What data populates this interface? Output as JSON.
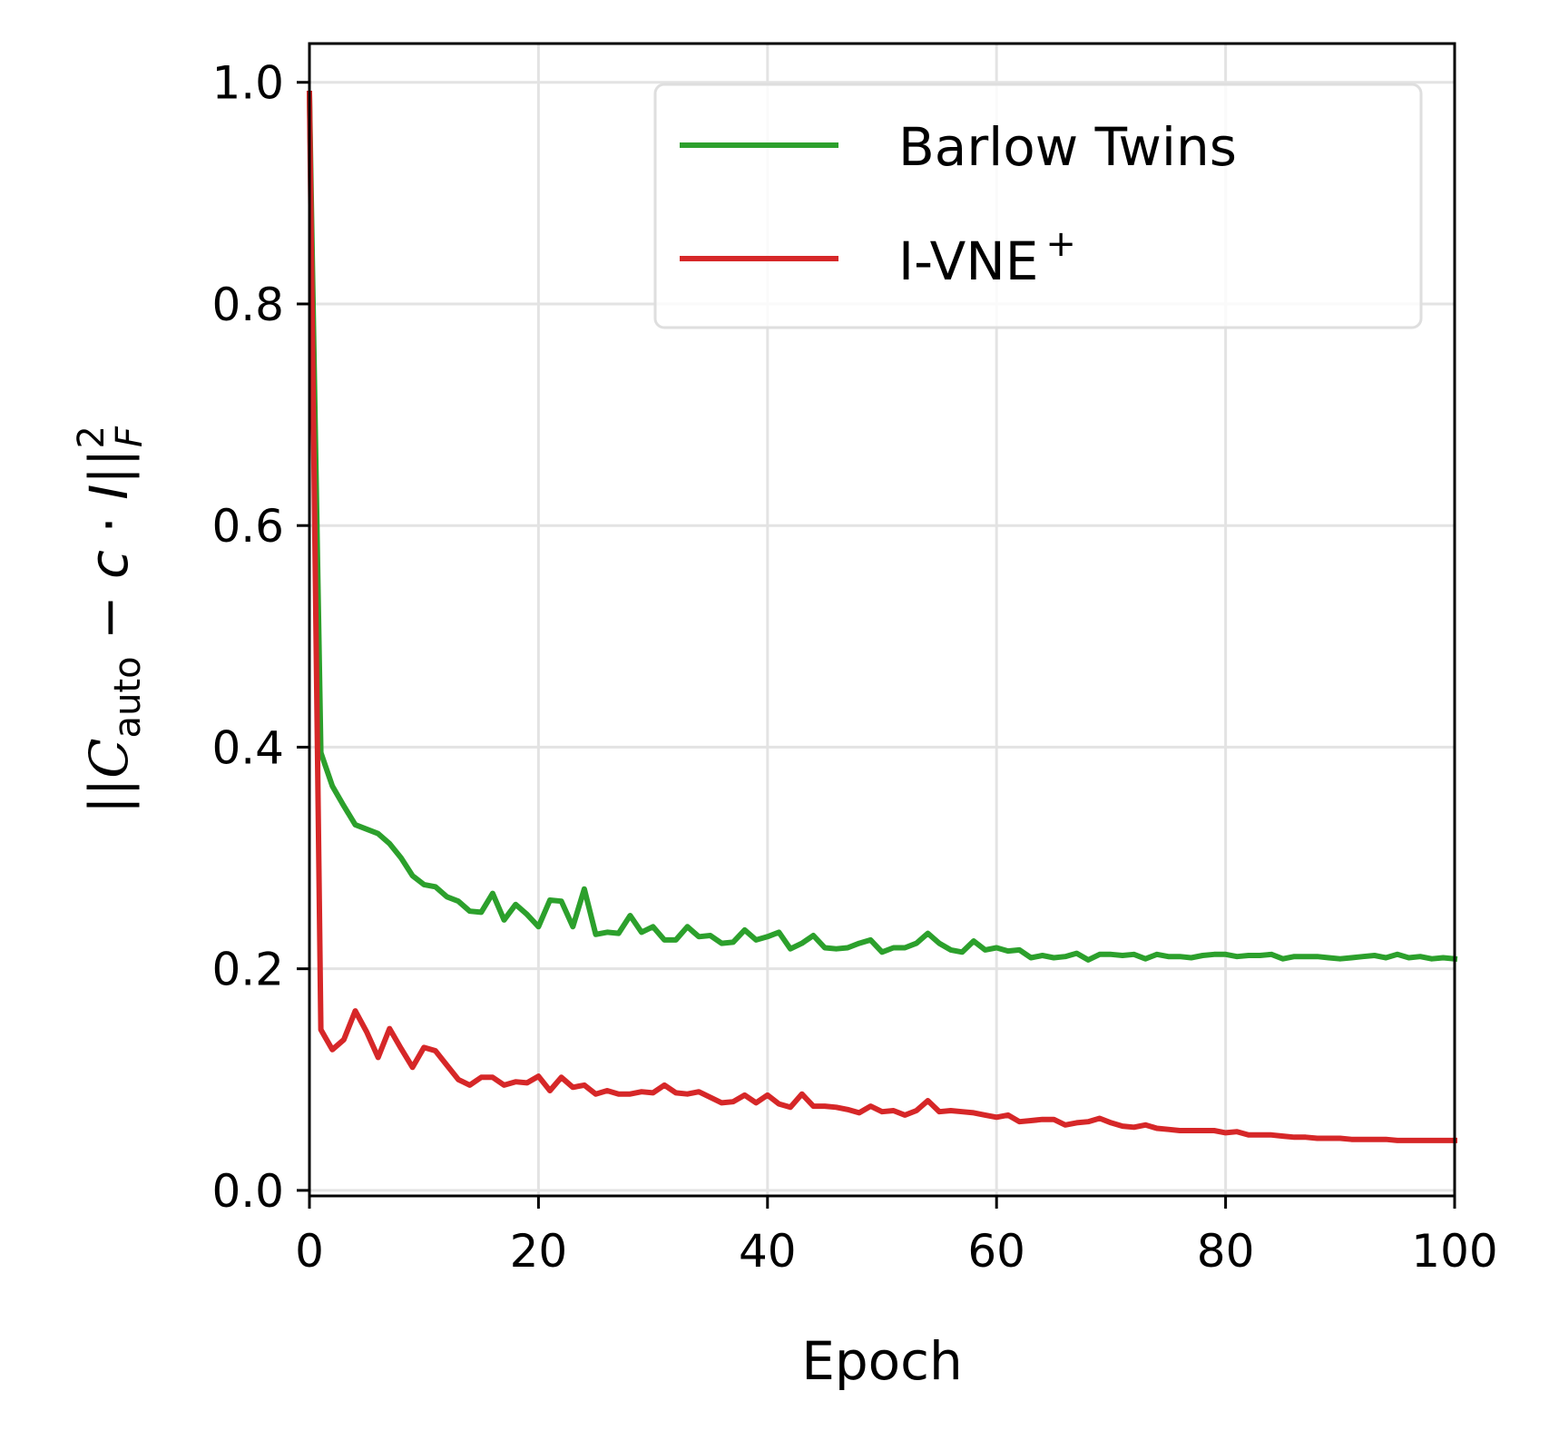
{
  "chart_data": {
    "type": "line",
    "title": "",
    "xlabel": "Epoch",
    "ylabel": {
      "pre": "||",
      "c_script": "C",
      "c_sub": "auto",
      "mid": " − ",
      "c_const": "c",
      "dot": " · ",
      "ident": "I",
      "bars": "||",
      "sub": "F",
      "sup": "2"
    },
    "xlim": [
      0,
      100
    ],
    "ylim": [
      -0.005,
      1.035
    ],
    "xticks": [
      0,
      20,
      40,
      60,
      80,
      100
    ],
    "xtick_labels": [
      "0",
      "20",
      "40",
      "60",
      "80",
      "100"
    ],
    "yticks": [
      0.0,
      0.2,
      0.4,
      0.6,
      0.8,
      1.0
    ],
    "ytick_labels": [
      "0.0",
      "0.2",
      "0.4",
      "0.6",
      "0.8",
      "1.0"
    ],
    "grid": true,
    "legend_position": "top-right",
    "x": [
      0,
      1,
      2,
      3,
      4,
      5,
      6,
      7,
      8,
      9,
      10,
      11,
      12,
      13,
      14,
      15,
      16,
      17,
      18,
      19,
      20,
      21,
      22,
      23,
      24,
      25,
      26,
      27,
      28,
      29,
      30,
      31,
      32,
      33,
      34,
      35,
      36,
      37,
      38,
      39,
      40,
      41,
      42,
      43,
      44,
      45,
      46,
      47,
      48,
      49,
      50,
      51,
      52,
      53,
      54,
      55,
      56,
      57,
      58,
      59,
      60,
      61,
      62,
      63,
      64,
      65,
      66,
      67,
      68,
      69,
      70,
      71,
      72,
      73,
      74,
      75,
      76,
      77,
      78,
      79,
      80,
      81,
      82,
      83,
      84,
      85,
      86,
      87,
      88,
      89,
      90,
      91,
      92,
      93,
      94,
      95,
      96,
      97,
      98,
      99,
      100
    ],
    "series": [
      {
        "name": "Barlow Twins",
        "color": "#2ca02c",
        "values": [
          0.99,
          0.395,
          0.365,
          0.347,
          0.33,
          0.326,
          0.322,
          0.313,
          0.3,
          0.284,
          0.276,
          0.274,
          0.265,
          0.261,
          0.252,
          0.251,
          0.268,
          0.244,
          0.258,
          0.249,
          0.238,
          0.262,
          0.261,
          0.238,
          0.272,
          0.231,
          0.233,
          0.232,
          0.248,
          0.233,
          0.238,
          0.226,
          0.226,
          0.238,
          0.229,
          0.23,
          0.223,
          0.224,
          0.235,
          0.226,
          0.229,
          0.233,
          0.218,
          0.223,
          0.23,
          0.219,
          0.218,
          0.219,
          0.223,
          0.226,
          0.215,
          0.219,
          0.219,
          0.223,
          0.232,
          0.223,
          0.217,
          0.215,
          0.225,
          0.217,
          0.219,
          0.216,
          0.217,
          0.21,
          0.212,
          0.21,
          0.211,
          0.214,
          0.208,
          0.213,
          0.213,
          0.212,
          0.213,
          0.209,
          0.213,
          0.211,
          0.211,
          0.21,
          0.212,
          0.213,
          0.213,
          0.211,
          0.212,
          0.212,
          0.213,
          0.209,
          0.211,
          0.211,
          0.211,
          0.21,
          0.209,
          0.21,
          0.211,
          0.212,
          0.21,
          0.213,
          0.21,
          0.211,
          0.209,
          0.21,
          0.209
        ]
      },
      {
        "name": "I-VNE",
        "name_sup": "+",
        "color": "#d62728",
        "values": [
          0.99,
          0.145,
          0.127,
          0.136,
          0.162,
          0.143,
          0.12,
          0.146,
          0.128,
          0.111,
          0.129,
          0.126,
          0.113,
          0.1,
          0.095,
          0.102,
          0.102,
          0.095,
          0.098,
          0.097,
          0.103,
          0.09,
          0.102,
          0.093,
          0.095,
          0.087,
          0.09,
          0.087,
          0.087,
          0.089,
          0.088,
          0.095,
          0.088,
          0.087,
          0.089,
          0.084,
          0.079,
          0.08,
          0.086,
          0.079,
          0.086,
          0.078,
          0.075,
          0.087,
          0.076,
          0.076,
          0.075,
          0.073,
          0.07,
          0.076,
          0.071,
          0.072,
          0.068,
          0.072,
          0.081,
          0.071,
          0.072,
          0.071,
          0.07,
          0.068,
          0.066,
          0.068,
          0.062,
          0.063,
          0.064,
          0.064,
          0.059,
          0.061,
          0.062,
          0.065,
          0.061,
          0.058,
          0.057,
          0.059,
          0.056,
          0.055,
          0.054,
          0.054,
          0.054,
          0.054,
          0.052,
          0.053,
          0.05,
          0.05,
          0.05,
          0.049,
          0.048,
          0.048,
          0.047,
          0.047,
          0.047,
          0.046,
          0.046,
          0.046,
          0.046,
          0.045,
          0.045,
          0.045,
          0.045,
          0.045,
          0.045
        ]
      }
    ]
  }
}
